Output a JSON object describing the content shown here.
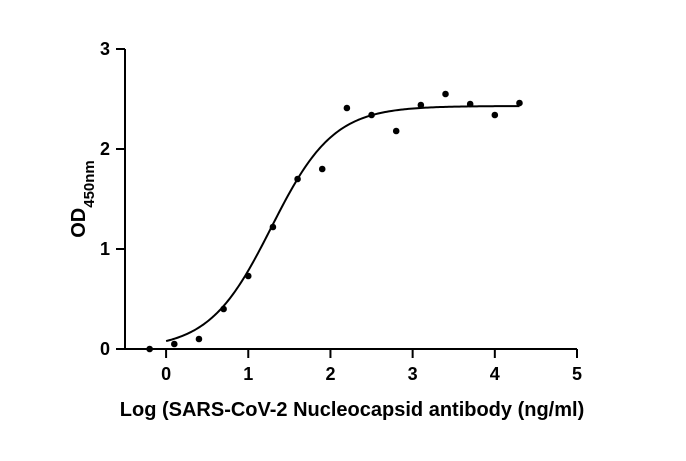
{
  "chart_data": {
    "type": "scatter",
    "title": "",
    "xlabel": "Log (SARS-CoV-2 Nucleocapsid antibody (ng/ml)",
    "ylabel": "OD",
    "ylabel_sub": "450nm",
    "xlim": [
      -0.5,
      5
    ],
    "ylim": [
      0,
      3
    ],
    "xticks": [
      0,
      1,
      2,
      3,
      4,
      5
    ],
    "yticks": [
      0,
      1,
      2,
      3
    ],
    "grid": false,
    "legend": "none",
    "series": [
      {
        "points": [
          {
            "x": -0.2,
            "y": 0.0
          },
          {
            "x": 0.1,
            "y": 0.05
          },
          {
            "x": 0.4,
            "y": 0.1
          },
          {
            "x": 0.7,
            "y": 0.4
          },
          {
            "x": 1.0,
            "y": 0.73
          },
          {
            "x": 1.3,
            "y": 1.22
          },
          {
            "x": 1.6,
            "y": 1.7
          },
          {
            "x": 1.9,
            "y": 1.8
          },
          {
            "x": 2.2,
            "y": 2.41
          },
          {
            "x": 2.5,
            "y": 2.34
          },
          {
            "x": 2.8,
            "y": 2.18
          },
          {
            "x": 3.1,
            "y": 2.44
          },
          {
            "x": 3.4,
            "y": 2.55
          },
          {
            "x": 3.7,
            "y": 2.45
          },
          {
            "x": 4.0,
            "y": 2.34
          },
          {
            "x": 4.3,
            "y": 2.46
          }
        ],
        "fit": {
          "model": "4PL",
          "bottom": 0.0,
          "top": 2.43,
          "logEC50": 1.28,
          "hill": 1.15,
          "x_range": [
            0.0,
            4.3
          ]
        }
      }
    ]
  }
}
